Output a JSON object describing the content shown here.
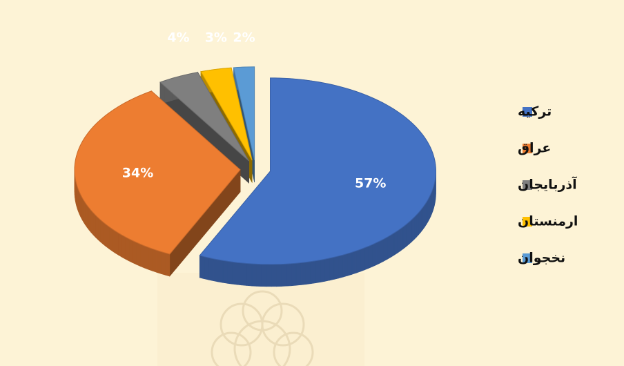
{
  "chart_data": {
    "type": "pie",
    "categories": [
      "ترکیه",
      "عراق",
      "آذربایجان",
      "ارمنستان",
      "نخجوان"
    ],
    "values": [
      57,
      34,
      4,
      3,
      2
    ],
    "value_labels": [
      "57%",
      "34%",
      "4%",
      "3%",
      "2%"
    ],
    "colors": [
      "#4472c4",
      "#ed7d31",
      "#7f7f7f",
      "#ffc000",
      "#5b9bd5"
    ],
    "legend": "right"
  }
}
